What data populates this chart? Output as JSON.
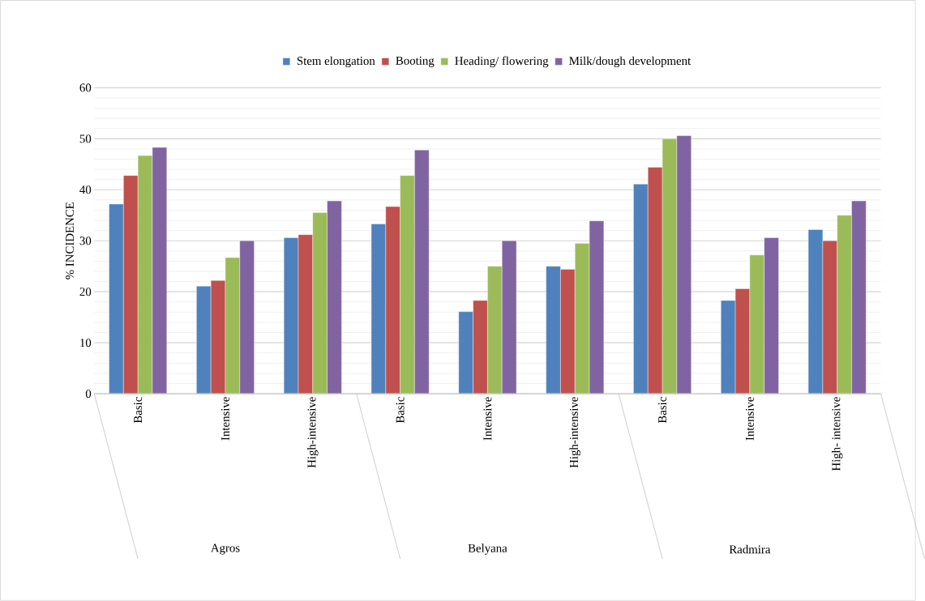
{
  "chart_data": {
    "type": "bar",
    "ylabel": "% INCIDENCE",
    "categories": [
      "Basic",
      "Intensive",
      "High-intensive",
      "Basic",
      "Intensive",
      "High-intensive",
      "Basic",
      "Intensive",
      "High- intensive"
    ],
    "series": [
      {
        "name": "Stem elongation",
        "color": "#4f81bd",
        "values": [
          37.2,
          21.1,
          30.6,
          33.3,
          16.1,
          25.0,
          41.1,
          18.3,
          32.2
        ]
      },
      {
        "name": "Booting",
        "color": "#c0504d",
        "values": [
          42.8,
          22.2,
          31.2,
          36.7,
          18.3,
          24.4,
          44.4,
          20.6,
          30.0
        ]
      },
      {
        "name": "Heading/ flowering",
        "color": "#9bbb59",
        "values": [
          46.7,
          26.7,
          35.5,
          42.8,
          25.0,
          29.5,
          50.0,
          27.2,
          35.0
        ]
      },
      {
        "name": "Milk/dough development",
        "color": "#8064a2",
        "values": [
          48.3,
          30.0,
          37.8,
          47.8,
          30.0,
          33.9,
          50.6,
          30.6,
          37.8
        ]
      }
    ],
    "annotations": [
      "Agros",
      "Belyana",
      "Radmira"
    ],
    "ylim": [
      0,
      60
    ],
    "yticks": [
      0,
      10,
      20,
      30,
      40,
      50,
      60
    ],
    "grid": "y",
    "legend": "top"
  }
}
